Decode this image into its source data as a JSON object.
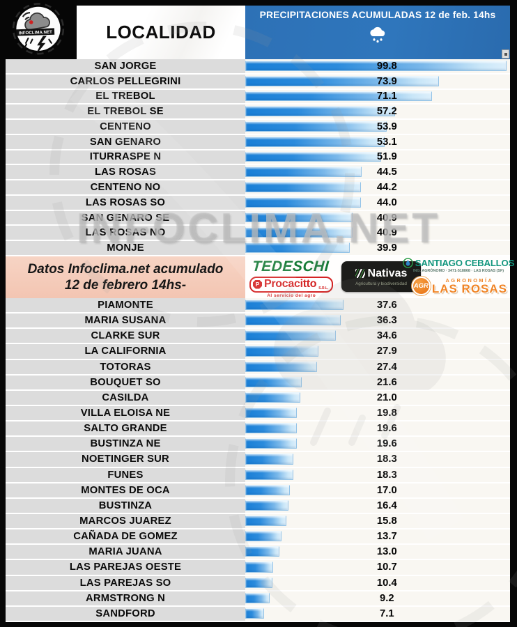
{
  "header": {
    "locality_label": "LOCALIDAD",
    "title": "PRECIPITACIONES ACUMULADAS 12 de feb. 14hs",
    "logo_text": "INFOCLIMA.NET"
  },
  "watermark": {
    "text": "INFOCLIMA.NET"
  },
  "sponsor_band": {
    "note_line1": "Datos Infoclima.net acumulado",
    "note_line2": "12 de febrero 14hs-",
    "tedeschi": {
      "name": "TEDESCHI"
    },
    "procacitto": {
      "icon_letter": "P",
      "name": "Procacitto",
      "suffix": "S.R.L.",
      "tagline": "Al servicio del agro"
    },
    "nativas": {
      "name": "Nativas",
      "tagline": "Agricultura y biodiversidad"
    },
    "ceballos": {
      "name": "SANTIAGO CEBALLOS",
      "tagline": "ING. AGRÓNOMO · 3471-518868 · LAS ROSAS (SF)"
    },
    "agr": {
      "badge": "AGR",
      "line1": "AGRONOMÍA",
      "line2": "LAS ROSAS"
    }
  },
  "colors": {
    "header_blue": "#2d71b6",
    "bar_blue": "#1a7fd6",
    "bar_light": "#dceffb",
    "row_gray": "#dcdcdc",
    "chart_bg": "#f9f7f2",
    "note_pink": "#f3c5b2",
    "tedeschi_green": "#157a36",
    "procacitto_red": "#d42222",
    "ceballos_teal": "#13967e",
    "agr_orange": "#f08324"
  },
  "chart_data": {
    "type": "bar",
    "orientation": "horizontal",
    "title": "PRECIPITACIONES ACUMULADAS 12 de feb. 14hs",
    "category_header": "LOCALIDAD",
    "value_axis_range": [
      0,
      101
    ],
    "value_label_position": "fixed-column",
    "grid": false,
    "legend": false,
    "sections": [
      {
        "rows": [
          {
            "name": "SAN JORGE",
            "value": 99.8
          },
          {
            "name": "CARLOS PELLEGRINI",
            "value": 73.9
          },
          {
            "name": "EL TREBOL",
            "value": 71.1
          },
          {
            "name": "EL TREBOL SE",
            "value": 57.2
          },
          {
            "name": "CENTENO",
            "value": 53.9
          },
          {
            "name": "SAN GENARO",
            "value": 53.1
          },
          {
            "name": "ITURRASPE N",
            "value": 51.9
          },
          {
            "name": "LAS ROSAS",
            "value": 44.5
          },
          {
            "name": "CENTENO NO",
            "value": 44.2
          },
          {
            "name": "LAS ROSAS SO",
            "value": 44.0
          },
          {
            "name": "SAN GENARO SE",
            "value": 40.9
          },
          {
            "name": "LAS ROSAS NO",
            "value": 40.9
          },
          {
            "name": "MONJE",
            "value": 39.9
          }
        ]
      },
      {
        "rows": [
          {
            "name": "PIAMONTE",
            "value": 37.6
          },
          {
            "name": "MARIA SUSANA",
            "value": 36.3
          },
          {
            "name": "CLARKE SUR",
            "value": 34.6
          },
          {
            "name": "LA CALIFORNIA",
            "value": 27.9
          },
          {
            "name": "TOTORAS",
            "value": 27.4
          },
          {
            "name": "BOUQUET SO",
            "value": 21.6
          },
          {
            "name": "CASILDA",
            "value": 21.0
          },
          {
            "name": "VILLA ELOISA NE",
            "value": 19.8
          },
          {
            "name": "SALTO GRANDE",
            "value": 19.6
          },
          {
            "name": "BUSTINZA NE",
            "value": 19.6
          },
          {
            "name": "NOETINGER SUR",
            "value": 18.3
          },
          {
            "name": "FUNES",
            "value": 18.3
          },
          {
            "name": "MONTES DE OCA",
            "value": 17.0
          },
          {
            "name": "BUSTINZA",
            "value": 16.4
          },
          {
            "name": "MARCOS JUAREZ",
            "value": 15.8
          },
          {
            "name": "CAÑADA DE GOMEZ",
            "value": 13.7
          },
          {
            "name": "MARIA JUANA",
            "value": 13.0
          },
          {
            "name": "LAS PAREJAS OESTE",
            "value": 10.7
          },
          {
            "name": "LAS PAREJAS SO",
            "value": 10.4
          },
          {
            "name": "ARMSTRONG N",
            "value": 9.2
          },
          {
            "name": "SANDFORD",
            "value": 7.1
          }
        ]
      }
    ]
  }
}
